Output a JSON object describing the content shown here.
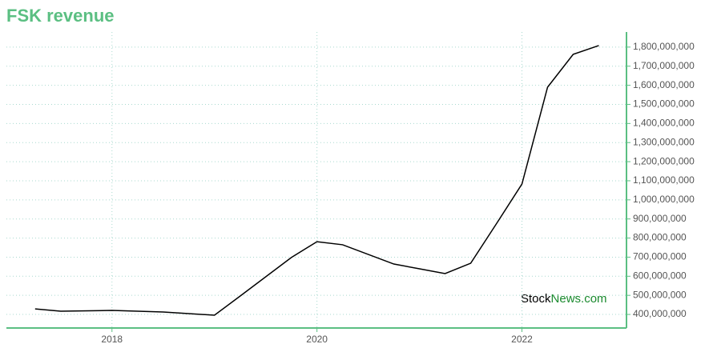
{
  "chart_data": {
    "type": "line",
    "title": "FSK revenue",
    "x": [
      2017.25,
      2017.5,
      2018.0,
      2018.5,
      2019.0,
      2019.25,
      2019.75,
      2020.0,
      2020.25,
      2020.75,
      2021.0,
      2021.25,
      2021.5,
      2021.75,
      2022.0,
      2022.25,
      2022.5,
      2022.75
    ],
    "series": [
      {
        "color": "#000000",
        "values": [
          429000000,
          417000000,
          421000000,
          413000000,
          396000000,
          496000000,
          698000000,
          781000000,
          765000000,
          664000000,
          639000000,
          614000000,
          668000000,
          874000000,
          1083000000,
          1590000000,
          1762000000,
          1808000000
        ]
      }
    ],
    "xlim": [
      2016.97,
      2023.02
    ],
    "xticks": [
      2018,
      2020,
      2022
    ],
    "ylim": [
      329000000,
      1879000000
    ],
    "yticks": [
      {
        "value": 400000000,
        "label": "400,000,000"
      },
      {
        "value": 500000000,
        "label": "500,000,000"
      },
      {
        "value": 600000000,
        "label": "600,000,000"
      },
      {
        "value": 700000000,
        "label": "700,000,000"
      },
      {
        "value": 800000000,
        "label": "800,000,000"
      },
      {
        "value": 900000000,
        "label": "900,000,000"
      },
      {
        "value": 1000000000,
        "label": "1,000,000,000"
      },
      {
        "value": 1100000000,
        "label": "1,100,000,000"
      },
      {
        "value": 1200000000,
        "label": "1,200,000,000"
      },
      {
        "value": 1300000000,
        "label": "1,300,000,000"
      },
      {
        "value": 1400000000,
        "label": "1,400,000,000"
      },
      {
        "value": 1500000000,
        "label": "1,500,000,000"
      },
      {
        "value": 1600000000,
        "label": "1,600,000,000"
      },
      {
        "value": 1700000000,
        "label": "1,700,000,000"
      },
      {
        "value": 1800000000,
        "label": "1,800,000,000"
      }
    ],
    "grid": true,
    "axis_color": "#5bbf82",
    "watermark": [
      "Stock",
      "News.com"
    ]
  }
}
